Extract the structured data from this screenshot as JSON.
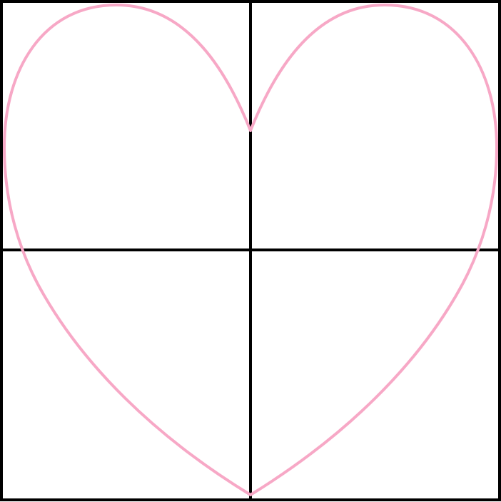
{
  "diagram": {
    "type": "heart-on-grid",
    "grid": {
      "columns": 2,
      "rows": 2,
      "line_color": "#000000"
    },
    "heart": {
      "stroke_color": "#f7a8c6",
      "fill": "none"
    }
  }
}
